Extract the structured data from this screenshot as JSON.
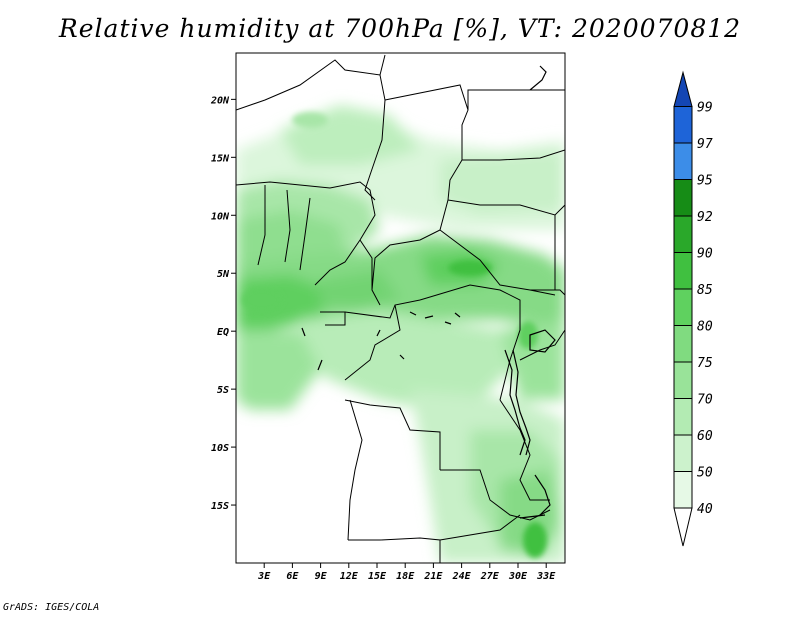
{
  "title": "Relative humidity at 700hPa [%], VT: 2020070812",
  "credit": "GrADS: IGES/COLA",
  "map": {
    "region": "Central Africa",
    "lon_range": [
      0,
      35
    ],
    "lat_range": [
      -20,
      24
    ],
    "lat_ticks": [
      {
        "value": 20,
        "label": "20N"
      },
      {
        "value": 15,
        "label": "15N"
      },
      {
        "value": 10,
        "label": "10N"
      },
      {
        "value": 5,
        "label": "5N"
      },
      {
        "value": 0,
        "label": "EQ"
      },
      {
        "value": -5,
        "label": "5S"
      },
      {
        "value": -10,
        "label": "10S"
      },
      {
        "value": -15,
        "label": "15S"
      }
    ],
    "lon_ticks": [
      {
        "value": 3,
        "label": "3E"
      },
      {
        "value": 6,
        "label": "6E"
      },
      {
        "value": 9,
        "label": "9E"
      },
      {
        "value": 12,
        "label": "12E"
      },
      {
        "value": 15,
        "label": "15E"
      },
      {
        "value": 18,
        "label": "18E"
      },
      {
        "value": 21,
        "label": "21E"
      },
      {
        "value": 24,
        "label": "24E"
      },
      {
        "value": 27,
        "label": "27E"
      },
      {
        "value": 30,
        "label": "30E"
      },
      {
        "value": 33,
        "label": "33E"
      }
    ]
  },
  "colorbar": {
    "levels": [
      "40",
      "50",
      "60",
      "70",
      "75",
      "80",
      "85",
      "90",
      "92",
      "95",
      "97",
      "99"
    ],
    "colors": [
      "#ffffff",
      "#e6f9e6",
      "#ccf2cc",
      "#b3ebb3",
      "#99e399",
      "#80db80",
      "#5fd15f",
      "#40c040",
      "#2aa82a",
      "#168c16",
      "#3c8de8",
      "#1e64d8",
      "#1446b4"
    ]
  }
}
